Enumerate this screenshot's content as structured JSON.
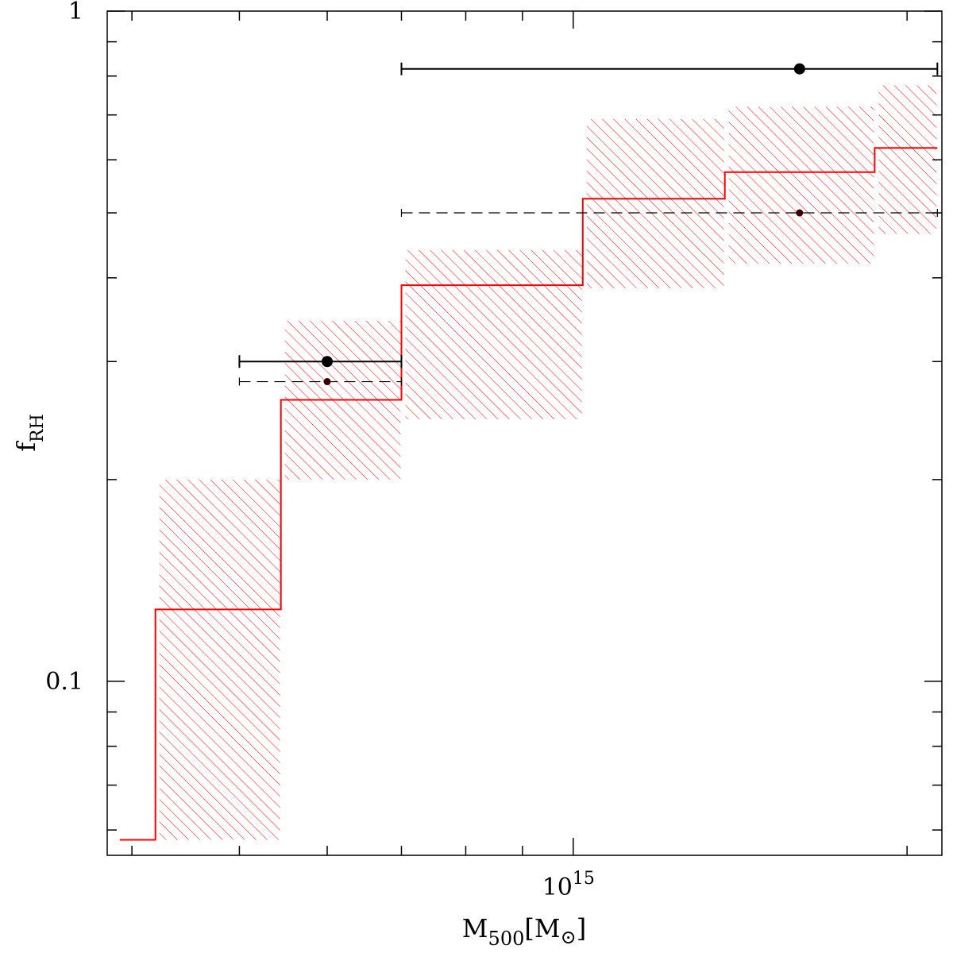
{
  "chart_data": {
    "type": "line",
    "xlabel": {
      "main": "M",
      "sub": "500",
      "unit_open": "[M",
      "unit_sub": "⊙",
      "unit_close": "]"
    },
    "ylabel": {
      "main": "f",
      "sub": "RH"
    },
    "xscale": "log",
    "yscale": "log",
    "xlim": [
      380000000000000.0,
      2150000000000000.0
    ],
    "ylim": [
      0.055,
      1.0
    ],
    "x_tick_labels": [
      {
        "x": 1000000000000000.0,
        "base": "10",
        "exp": "15"
      }
    ],
    "y_tick_labels": [
      {
        "y": 1.0,
        "text": "1"
      },
      {
        "y": 0.1,
        "text": "0.1"
      }
    ],
    "x_minor_ticks": [
      400000000000000.0,
      500000000000000.0,
      600000000000000.0,
      700000000000000.0,
      800000000000000.0,
      900000000000000.0,
      2000000000000000.0
    ],
    "y_minor_ticks": [
      0.06,
      0.07,
      0.08,
      0.09,
      0.2,
      0.3,
      0.4,
      0.5,
      0.6,
      0.7,
      0.8,
      0.9
    ],
    "grid": false,
    "colors": {
      "model": "#ff0000",
      "data": "#000000"
    },
    "model_steps": [
      {
        "x0": 390000000000000.0,
        "x1": 420000000000000.0,
        "y": 0.058
      },
      {
        "x0": 420000000000000.0,
        "x1": 545000000000000.0,
        "y": 0.128,
        "band": [
          0.058,
          0.2
        ]
      },
      {
        "x0": 545000000000000.0,
        "x1": 700000000000000.0,
        "y": 0.263,
        "band": [
          0.2,
          0.345
        ]
      },
      {
        "x0": 700000000000000.0,
        "x1": 1020000000000000.0,
        "y": 0.39,
        "band": [
          0.246,
          0.44
        ]
      },
      {
        "x0": 1020000000000000.0,
        "x1": 1370000000000000.0,
        "y": 0.525,
        "band": [
          0.386,
          0.69
        ]
      },
      {
        "x0": 1370000000000000.0,
        "x1": 1870000000000000.0,
        "y": 0.575,
        "band": [
          0.42,
          0.72
        ]
      },
      {
        "x0": 1870000000000000.0,
        "x1": 2130000000000000.0,
        "y": 0.625,
        "band": [
          0.465,
          0.775
        ]
      }
    ],
    "data_points": [
      {
        "x": 600000000000000.0,
        "y": 0.3,
        "xerr": [
          500000000000000.0,
          700000000000000.0
        ],
        "style": "solid",
        "marker": "large"
      },
      {
        "x": 600000000000000.0,
        "y": 0.28,
        "xerr": [
          500000000000000.0,
          700000000000000.0
        ],
        "style": "dashed",
        "marker": "small"
      },
      {
        "x": 1600000000000000.0,
        "y": 0.82,
        "xerr": [
          700000000000000.0,
          2130000000000000.0
        ],
        "style": "solid",
        "marker": "large"
      },
      {
        "x": 1600000000000000.0,
        "y": 0.5,
        "xerr": [
          700000000000000.0,
          2130000000000000.0
        ],
        "style": "dashed",
        "marker": "small"
      }
    ]
  }
}
